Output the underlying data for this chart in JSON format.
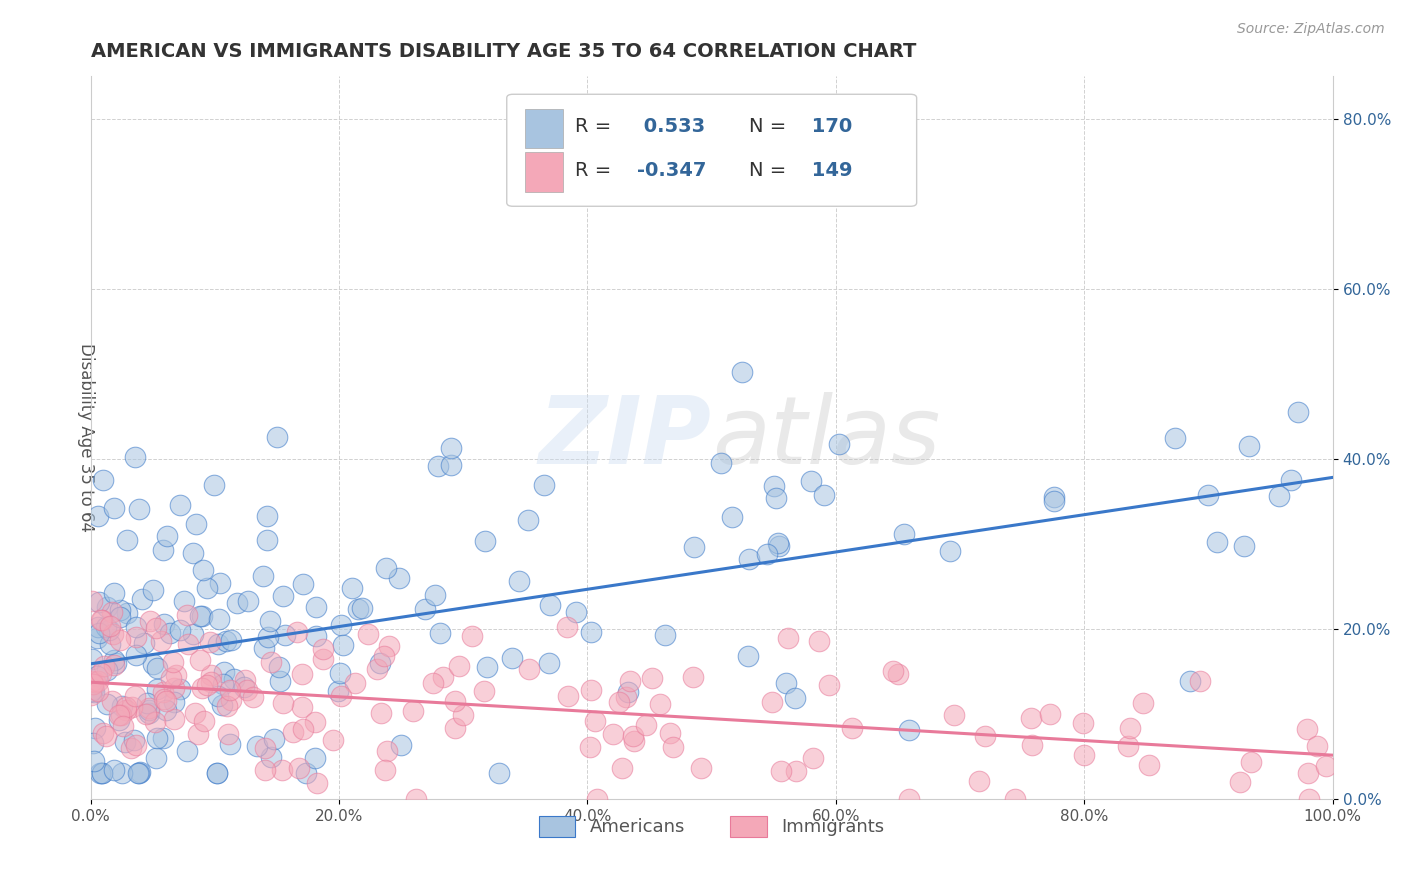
{
  "title": "AMERICAN VS IMMIGRANTS DISABILITY AGE 35 TO 64 CORRELATION CHART",
  "source": "Source: ZipAtlas.com",
  "ylabel": "Disability Age 35 to 64",
  "xlim": [
    0.0,
    1.0
  ],
  "ylim": [
    0.0,
    0.85
  ],
  "x_ticks": [
    0.0,
    0.2,
    0.4,
    0.6,
    0.8,
    1.0
  ],
  "x_tick_labels": [
    "0.0%",
    "20.0%",
    "40.0%",
    "60.0%",
    "80.0%",
    "100.0%"
  ],
  "y_ticks": [
    0.0,
    0.2,
    0.4,
    0.6,
    0.8
  ],
  "y_tick_labels": [
    "0.0%",
    "20.0%",
    "40.0%",
    "60.0%",
    "80.0%"
  ],
  "american_color": "#a8c4e0",
  "immigrant_color": "#f4a8b8",
  "american_line_color": "#3a78c9",
  "immigrant_line_color": "#e87a9a",
  "r_american": 0.533,
  "n_american": 170,
  "r_immigrant": -0.347,
  "n_immigrant": 149,
  "watermark_zip": "ZIP",
  "watermark_atlas": "atlas",
  "background_color": "#ffffff",
  "grid_color": "#cccccc",
  "title_color": "#333333",
  "legend_text_color": "#336699"
}
